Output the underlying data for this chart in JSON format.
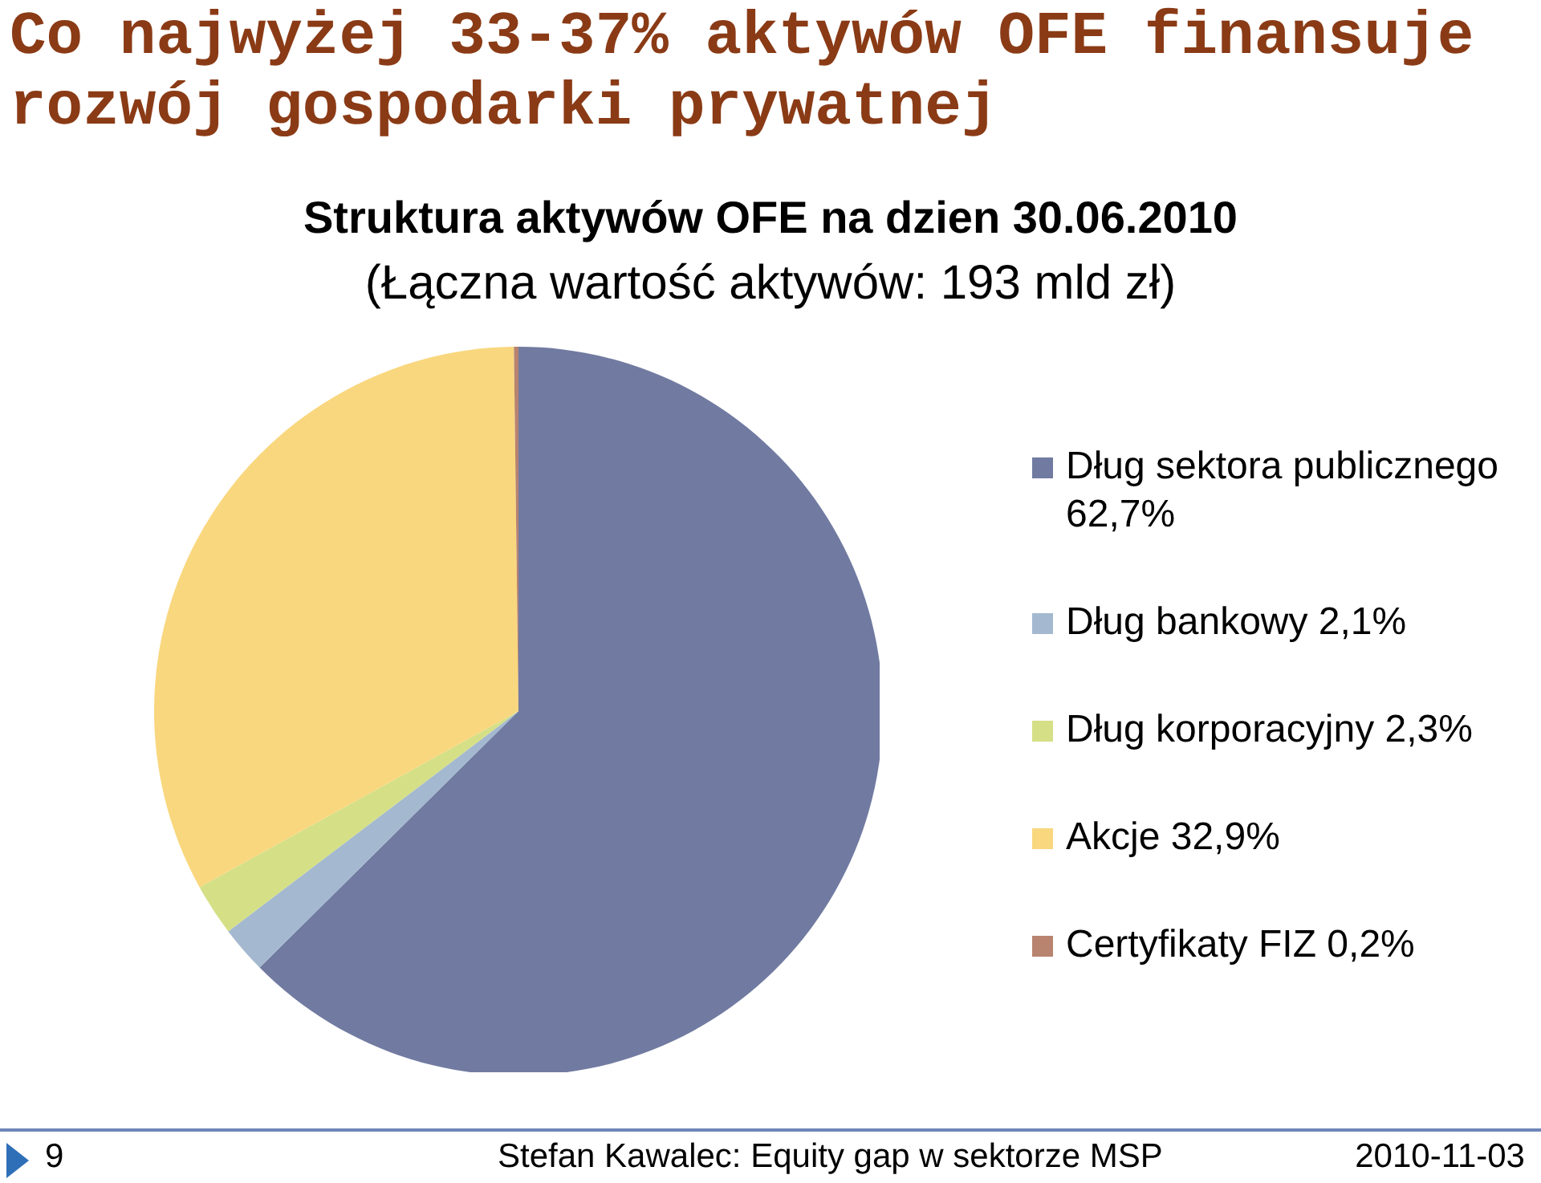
{
  "chart_data": {
    "type": "pie",
    "title": "Co najwyżej 33-37% aktywów OFE finansuje rozwój gospodarki prywatnej",
    "subtitle": "Struktura aktywów OFE na dzien 30.06.2010\n(Łączna wartość aktywów: 193 mld zł)",
    "categories": [
      "Dług sektora publicznego 62,7%",
      "Dług bankowy 2,1%",
      "Dług korporacyjny 2,3%",
      "Akcje 32,9%",
      "Certyfikaty FIZ 0,2%"
    ],
    "values": [
      62.7,
      2.1,
      2.3,
      32.9,
      0.2
    ],
    "colors": [
      "#717ba1",
      "#a4b9cf",
      "#d5df86",
      "#f9d77e",
      "#b8836f"
    ],
    "legend": "right",
    "annotations": [
      "9",
      "Stefan Kawalec: Equity gap w sektorze MSP",
      "2010-11-03"
    ]
  }
}
